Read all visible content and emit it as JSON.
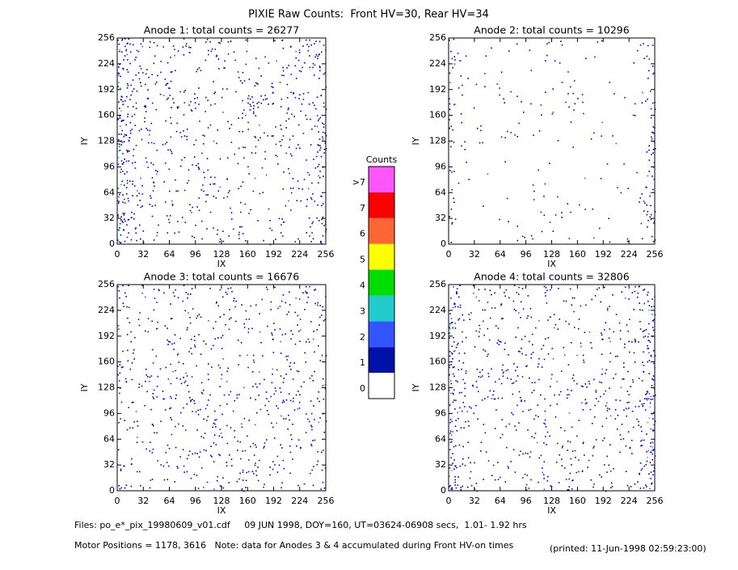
{
  "page_title": "PIXIE Raw Counts:  Front HV=30, Rear HV=34",
  "chart_data": [
    {
      "type": "heatmap",
      "title": "Anode 1: total counts = 26277",
      "xlabel": "IX",
      "ylabel": "IY",
      "xlim": [
        0,
        256
      ],
      "ylim": [
        0,
        256
      ],
      "xticks": [
        0,
        32,
        64,
        96,
        128,
        160,
        192,
        224,
        256
      ],
      "yticks": [
        0,
        32,
        64,
        96,
        128,
        160,
        192,
        224,
        256
      ]
    },
    {
      "type": "heatmap",
      "title": "Anode 2: total counts = 10296",
      "xlabel": "IX",
      "ylabel": "IY",
      "xlim": [
        0,
        256
      ],
      "ylim": [
        0,
        256
      ],
      "xticks": [
        0,
        32,
        64,
        96,
        128,
        160,
        192,
        224,
        256
      ],
      "yticks": [
        0,
        32,
        64,
        96,
        128,
        160,
        192,
        224,
        256
      ]
    },
    {
      "type": "heatmap",
      "title": "Anode 3: total counts = 16676",
      "xlabel": "IX",
      "ylabel": "IY",
      "xlim": [
        0,
        256
      ],
      "ylim": [
        0,
        256
      ],
      "xticks": [
        0,
        32,
        64,
        96,
        128,
        160,
        192,
        224,
        256
      ],
      "yticks": [
        0,
        32,
        64,
        96,
        128,
        160,
        192,
        224,
        256
      ]
    },
    {
      "type": "heatmap",
      "title": "Anode 4: total counts = 32806",
      "xlabel": "IX",
      "ylabel": "IY",
      "xlim": [
        0,
        256
      ],
      "ylim": [
        0,
        256
      ],
      "xticks": [
        0,
        32,
        64,
        96,
        128,
        160,
        192,
        224,
        256
      ],
      "yticks": [
        0,
        32,
        64,
        96,
        128,
        160,
        192,
        224,
        256
      ]
    }
  ],
  "colorbar": {
    "title": "Counts",
    "levels": [
      {
        "label": "0",
        "color": "#ffffff"
      },
      {
        "label": "1",
        "color": "#0011aa"
      },
      {
        "label": "2",
        "color": "#3355ff"
      },
      {
        "label": "3",
        "color": "#22cccc"
      },
      {
        "label": "4",
        "color": "#00dd00"
      },
      {
        "label": "5",
        "color": "#ffff00"
      },
      {
        "label": "6",
        "color": "#ff6633"
      },
      {
        "label": "7",
        "color": "#ff0000"
      },
      {
        "label": ">7",
        "color": "#ff55ff"
      }
    ]
  },
  "footer": {
    "files": "Files: po_e*_pix_19980609_v01.cdf     09 JUN 1998, DOY=160, UT=03624-06908 secs,  1.01- 1.92 hrs",
    "motor": "Motor Positions = 1178, 3616   Note: data for Anodes 3 & 4 accumulated during Front HV-on times",
    "printed": "(printed: 11-Jun-1998 02:59:23:00)"
  }
}
